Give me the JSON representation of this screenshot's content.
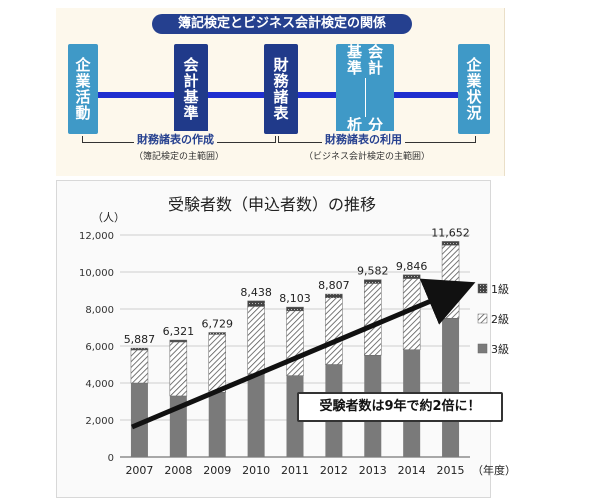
{
  "diagram": {
    "title": "簿記検定とビジネス会計検定の関係",
    "boxes": [
      {
        "label": "企業活動",
        "tone": "light"
      },
      {
        "label": "会計基準",
        "tone": "dark"
      },
      {
        "label": "財務諸表",
        "tone": "dark"
      },
      {
        "label": "会計基準",
        "label2": "分析",
        "tone": "light"
      },
      {
        "label": "企業状況",
        "tone": "light"
      }
    ],
    "ranges": [
      {
        "label": "財務諸表の作成",
        "sub": "（簿記検定の主範囲）"
      },
      {
        "label": "財務諸表の利用",
        "sub": "（ビジネス会計検定の主範囲）"
      }
    ]
  },
  "colors": {
    "dark_box": "#203a8a",
    "light_box": "#3f99c7",
    "line": "#1f2fcf",
    "level3": "#7a7a7a",
    "level1": "#333333"
  },
  "chart_data": {
    "type": "bar",
    "stacked": true,
    "title": "受験者数（申込者数）の推移",
    "ylabel": "（人）",
    "xlabel": "（年度）",
    "ylim": [
      0,
      12000
    ],
    "yticks": [
      "0",
      "2,000",
      "4,000",
      "6,000",
      "8,000",
      "10,000",
      "12,000"
    ],
    "categories": [
      "2007",
      "2008",
      "2009",
      "2010",
      "2011",
      "2012",
      "2013",
      "2014",
      "2015"
    ],
    "totals_labels": [
      "5,887",
      "6,321",
      "6,729",
      "8,438",
      "8,103",
      "8,807",
      "9,582",
      "9,846",
      "11,652"
    ],
    "series": [
      {
        "name": "3級",
        "values": [
          4000,
          3300,
          3500,
          4500,
          4400,
          5000,
          5500,
          5800,
          7500
        ]
      },
      {
        "name": "2級",
        "values": [
          1787,
          2921,
          3129,
          3638,
          3503,
          3607,
          3882,
          3846,
          3952
        ]
      },
      {
        "name": "1級",
        "values": [
          100,
          100,
          100,
          300,
          200,
          200,
          200,
          200,
          200
        ]
      }
    ],
    "legend": [
      "1級",
      "2級",
      "3級"
    ],
    "legend_position": "right",
    "annotation": "受験者数は9年で約2倍に！"
  }
}
